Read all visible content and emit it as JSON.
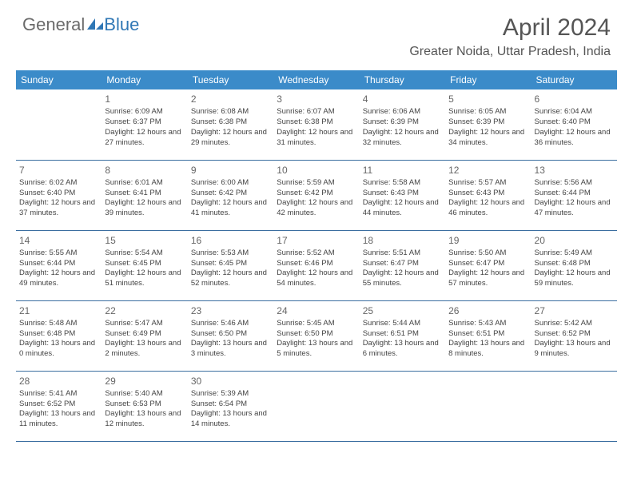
{
  "logo": {
    "text1": "General",
    "text2": "Blue",
    "accent_color": "#2f77b5"
  },
  "title": "April 2024",
  "location": "Greater Noida, Uttar Pradesh, India",
  "header_bg": "#3b8bc9",
  "border_color": "#3b6ea0",
  "weekdays": [
    "Sunday",
    "Monday",
    "Tuesday",
    "Wednesday",
    "Thursday",
    "Friday",
    "Saturday"
  ],
  "weeks": [
    [
      null,
      {
        "n": "1",
        "sr": "6:09 AM",
        "ss": "6:37 PM",
        "dl": "12 hours and 27 minutes."
      },
      {
        "n": "2",
        "sr": "6:08 AM",
        "ss": "6:38 PM",
        "dl": "12 hours and 29 minutes."
      },
      {
        "n": "3",
        "sr": "6:07 AM",
        "ss": "6:38 PM",
        "dl": "12 hours and 31 minutes."
      },
      {
        "n": "4",
        "sr": "6:06 AM",
        "ss": "6:39 PM",
        "dl": "12 hours and 32 minutes."
      },
      {
        "n": "5",
        "sr": "6:05 AM",
        "ss": "6:39 PM",
        "dl": "12 hours and 34 minutes."
      },
      {
        "n": "6",
        "sr": "6:04 AM",
        "ss": "6:40 PM",
        "dl": "12 hours and 36 minutes."
      }
    ],
    [
      {
        "n": "7",
        "sr": "6:02 AM",
        "ss": "6:40 PM",
        "dl": "12 hours and 37 minutes."
      },
      {
        "n": "8",
        "sr": "6:01 AM",
        "ss": "6:41 PM",
        "dl": "12 hours and 39 minutes."
      },
      {
        "n": "9",
        "sr": "6:00 AM",
        "ss": "6:42 PM",
        "dl": "12 hours and 41 minutes."
      },
      {
        "n": "10",
        "sr": "5:59 AM",
        "ss": "6:42 PM",
        "dl": "12 hours and 42 minutes."
      },
      {
        "n": "11",
        "sr": "5:58 AM",
        "ss": "6:43 PM",
        "dl": "12 hours and 44 minutes."
      },
      {
        "n": "12",
        "sr": "5:57 AM",
        "ss": "6:43 PM",
        "dl": "12 hours and 46 minutes."
      },
      {
        "n": "13",
        "sr": "5:56 AM",
        "ss": "6:44 PM",
        "dl": "12 hours and 47 minutes."
      }
    ],
    [
      {
        "n": "14",
        "sr": "5:55 AM",
        "ss": "6:44 PM",
        "dl": "12 hours and 49 minutes."
      },
      {
        "n": "15",
        "sr": "5:54 AM",
        "ss": "6:45 PM",
        "dl": "12 hours and 51 minutes."
      },
      {
        "n": "16",
        "sr": "5:53 AM",
        "ss": "6:45 PM",
        "dl": "12 hours and 52 minutes."
      },
      {
        "n": "17",
        "sr": "5:52 AM",
        "ss": "6:46 PM",
        "dl": "12 hours and 54 minutes."
      },
      {
        "n": "18",
        "sr": "5:51 AM",
        "ss": "6:47 PM",
        "dl": "12 hours and 55 minutes."
      },
      {
        "n": "19",
        "sr": "5:50 AM",
        "ss": "6:47 PM",
        "dl": "12 hours and 57 minutes."
      },
      {
        "n": "20",
        "sr": "5:49 AM",
        "ss": "6:48 PM",
        "dl": "12 hours and 59 minutes."
      }
    ],
    [
      {
        "n": "21",
        "sr": "5:48 AM",
        "ss": "6:48 PM",
        "dl": "13 hours and 0 minutes."
      },
      {
        "n": "22",
        "sr": "5:47 AM",
        "ss": "6:49 PM",
        "dl": "13 hours and 2 minutes."
      },
      {
        "n": "23",
        "sr": "5:46 AM",
        "ss": "6:50 PM",
        "dl": "13 hours and 3 minutes."
      },
      {
        "n": "24",
        "sr": "5:45 AM",
        "ss": "6:50 PM",
        "dl": "13 hours and 5 minutes."
      },
      {
        "n": "25",
        "sr": "5:44 AM",
        "ss": "6:51 PM",
        "dl": "13 hours and 6 minutes."
      },
      {
        "n": "26",
        "sr": "5:43 AM",
        "ss": "6:51 PM",
        "dl": "13 hours and 8 minutes."
      },
      {
        "n": "27",
        "sr": "5:42 AM",
        "ss": "6:52 PM",
        "dl": "13 hours and 9 minutes."
      }
    ],
    [
      {
        "n": "28",
        "sr": "5:41 AM",
        "ss": "6:52 PM",
        "dl": "13 hours and 11 minutes."
      },
      {
        "n": "29",
        "sr": "5:40 AM",
        "ss": "6:53 PM",
        "dl": "13 hours and 12 minutes."
      },
      {
        "n": "30",
        "sr": "5:39 AM",
        "ss": "6:54 PM",
        "dl": "13 hours and 14 minutes."
      },
      null,
      null,
      null,
      null
    ]
  ],
  "labels": {
    "sunrise": "Sunrise: ",
    "sunset": "Sunset: ",
    "daylight": "Daylight: "
  }
}
